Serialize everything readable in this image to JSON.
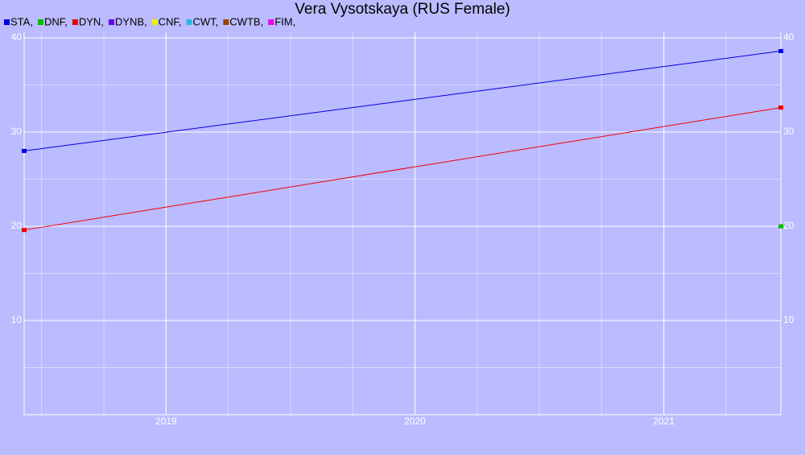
{
  "chart_data": {
    "type": "line",
    "title": "Vera Vysotskaya (RUS Female)",
    "x": [
      2018.43,
      2021.47
    ],
    "xlim": [
      2018.43,
      2021.47
    ],
    "xticks": [
      2019,
      2020,
      2021
    ],
    "ylim": [
      0,
      40.6
    ],
    "yticks": [
      10,
      20,
      30,
      40
    ],
    "grid": true,
    "series": [
      {
        "name": "STA,",
        "color": "#0000dd",
        "values": [
          28,
          38.6
        ]
      },
      {
        "name": "DNF,",
        "color": "#00bb00",
        "values": [
          null,
          20
        ]
      },
      {
        "name": "DYN,",
        "color": "#ee0000",
        "values": [
          19.6,
          32.6
        ]
      },
      {
        "name": "DYNB,",
        "color": "#6a00ee",
        "values": [
          null,
          null
        ]
      },
      {
        "name": "CNF,",
        "color": "#eeee00",
        "values": [
          null,
          null
        ]
      },
      {
        "name": "CWT,",
        "color": "#22bbdd",
        "values": [
          null,
          null
        ]
      },
      {
        "name": "CWTB,",
        "color": "#994400",
        "values": [
          null,
          null
        ]
      },
      {
        "name": "FIM,",
        "color": "#ee00ee",
        "values": [
          null,
          null
        ]
      }
    ]
  }
}
